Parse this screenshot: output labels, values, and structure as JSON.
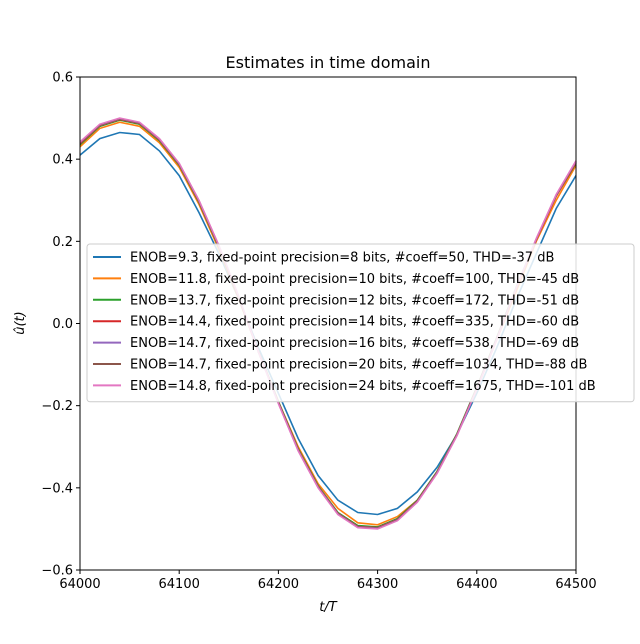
{
  "chart_data": {
    "type": "line",
    "title": "Estimates in time domain",
    "xlabel": "t/T",
    "ylabel": "û(t)",
    "xlim": [
      64000,
      64500
    ],
    "ylim": [
      -0.6,
      0.6
    ],
    "xticks": [
      64000,
      64100,
      64200,
      64300,
      64400,
      64500
    ],
    "xtick_labels": [
      "64000",
      "64100",
      "64200",
      "64300",
      "64400",
      "64500"
    ],
    "yticks": [
      -0.6,
      -0.4,
      -0.2,
      0.0,
      0.2,
      0.4,
      0.6
    ],
    "ytick_labels": [
      "−0.6",
      "−0.4",
      "−0.2",
      "0.0",
      "0.2",
      "0.4",
      "0.6"
    ],
    "grid": false,
    "legend_position": "center-right",
    "series": [
      {
        "name": "ENOB=9.3, fixed-point precision=8 bits, #coeff=50, THD=-37 dB",
        "color": "#1f77b4",
        "x": [
          64000,
          64020,
          64040,
          64060,
          64080,
          64100,
          64120,
          64140,
          64160,
          64180,
          64200,
          64220,
          64240,
          64260,
          64280,
          64300,
          64320,
          64340,
          64360,
          64380,
          64400,
          64420,
          64440,
          64460,
          64480,
          64500
        ],
        "y": [
          0.41,
          0.45,
          0.465,
          0.46,
          0.42,
          0.36,
          0.27,
          0.17,
          0.06,
          -0.06,
          -0.17,
          -0.28,
          -0.37,
          -0.43,
          -0.46,
          -0.465,
          -0.45,
          -0.41,
          -0.35,
          -0.27,
          -0.17,
          -0.06,
          0.06,
          0.17,
          0.28,
          0.36
        ]
      },
      {
        "name": "ENOB=11.8, fixed-point precision=10 bits, #coeff=100, THD=-45 dB",
        "color": "#ff7f0e",
        "x": [
          64000,
          64020,
          64040,
          64060,
          64080,
          64100,
          64120,
          64140,
          64160,
          64180,
          64200,
          64220,
          64240,
          64260,
          64280,
          64300,
          64320,
          64340,
          64360,
          64380,
          64400,
          64420,
          64440,
          64460,
          64480,
          64500
        ],
        "y": [
          0.43,
          0.475,
          0.49,
          0.48,
          0.44,
          0.38,
          0.29,
          0.18,
          0.06,
          -0.07,
          -0.19,
          -0.3,
          -0.39,
          -0.45,
          -0.485,
          -0.49,
          -0.47,
          -0.43,
          -0.36,
          -0.27,
          -0.16,
          -0.04,
          0.08,
          0.2,
          0.3,
          0.385
        ]
      },
      {
        "name": "ENOB=13.7, fixed-point precision=12 bits, #coeff=172, THD=-51 dB",
        "color": "#2ca02c",
        "x": [
          64000,
          64020,
          64040,
          64060,
          64080,
          64100,
          64120,
          64140,
          64160,
          64180,
          64200,
          64220,
          64240,
          64260,
          64280,
          64300,
          64320,
          64340,
          64360,
          64380,
          64400,
          64420,
          64440,
          64460,
          64480,
          64500
        ],
        "y": [
          0.435,
          0.48,
          0.495,
          0.485,
          0.445,
          0.385,
          0.295,
          0.185,
          0.062,
          -0.068,
          -0.19,
          -0.305,
          -0.395,
          -0.46,
          -0.492,
          -0.495,
          -0.475,
          -0.43,
          -0.36,
          -0.268,
          -0.155,
          -0.035,
          0.09,
          0.205,
          0.31,
          0.39
        ]
      },
      {
        "name": "ENOB=14.4, fixed-point precision=14 bits, #coeff=335, THD=-60 dB",
        "color": "#d62728",
        "x": [
          64000,
          64020,
          64040,
          64060,
          64080,
          64100,
          64120,
          64140,
          64160,
          64180,
          64200,
          64220,
          64240,
          64260,
          64280,
          64300,
          64320,
          64340,
          64360,
          64380,
          64400,
          64420,
          64440,
          64460,
          64480,
          64500
        ],
        "y": [
          0.438,
          0.482,
          0.497,
          0.487,
          0.447,
          0.387,
          0.297,
          0.187,
          0.063,
          -0.069,
          -0.192,
          -0.307,
          -0.397,
          -0.462,
          -0.494,
          -0.497,
          -0.477,
          -0.432,
          -0.362,
          -0.27,
          -0.157,
          -0.037,
          0.088,
          0.204,
          0.31,
          0.392
        ]
      },
      {
        "name": "ENOB=14.7, fixed-point precision=16 bits, #coeff=538, THD=-69 dB",
        "color": "#9467bd",
        "x": [
          64000,
          64020,
          64040,
          64060,
          64080,
          64100,
          64120,
          64140,
          64160,
          64180,
          64200,
          64220,
          64240,
          64260,
          64280,
          64300,
          64320,
          64340,
          64360,
          64380,
          64400,
          64420,
          64440,
          64460,
          64480,
          64500
        ],
        "y": [
          0.44,
          0.483,
          0.498,
          0.488,
          0.448,
          0.388,
          0.298,
          0.188,
          0.064,
          -0.07,
          -0.193,
          -0.308,
          -0.398,
          -0.463,
          -0.495,
          -0.498,
          -0.478,
          -0.433,
          -0.363,
          -0.271,
          -0.158,
          -0.038,
          0.088,
          0.205,
          0.312,
          0.394
        ]
      },
      {
        "name": "ENOB=14.7, fixed-point precision=20 bits, #coeff=1034, THD=-88 dB",
        "color": "#8c564b",
        "x": [
          64000,
          64020,
          64040,
          64060,
          64080,
          64100,
          64120,
          64140,
          64160,
          64180,
          64200,
          64220,
          64240,
          64260,
          64280,
          64300,
          64320,
          64340,
          64360,
          64380,
          64400,
          64420,
          64440,
          64460,
          64480,
          64500
        ],
        "y": [
          0.441,
          0.484,
          0.499,
          0.489,
          0.449,
          0.389,
          0.299,
          0.189,
          0.065,
          -0.07,
          -0.194,
          -0.309,
          -0.399,
          -0.464,
          -0.496,
          -0.499,
          -0.479,
          -0.434,
          -0.364,
          -0.272,
          -0.159,
          -0.039,
          0.088,
          0.206,
          0.313,
          0.395
        ]
      },
      {
        "name": "ENOB=14.8, fixed-point precision=24 bits, #coeff=1675, THD=-101 dB",
        "color": "#e377c2",
        "x": [
          64000,
          64020,
          64040,
          64060,
          64080,
          64100,
          64120,
          64140,
          64160,
          64180,
          64200,
          64220,
          64240,
          64260,
          64280,
          64300,
          64320,
          64340,
          64360,
          64380,
          64400,
          64420,
          64440,
          64460,
          64480,
          64500
        ],
        "y": [
          0.442,
          0.485,
          0.5,
          0.49,
          0.45,
          0.39,
          0.3,
          0.19,
          0.066,
          -0.07,
          -0.195,
          -0.31,
          -0.4,
          -0.465,
          -0.497,
          -0.5,
          -0.48,
          -0.435,
          -0.365,
          -0.273,
          -0.16,
          -0.04,
          0.088,
          0.207,
          0.314,
          0.396
        ]
      }
    ]
  }
}
